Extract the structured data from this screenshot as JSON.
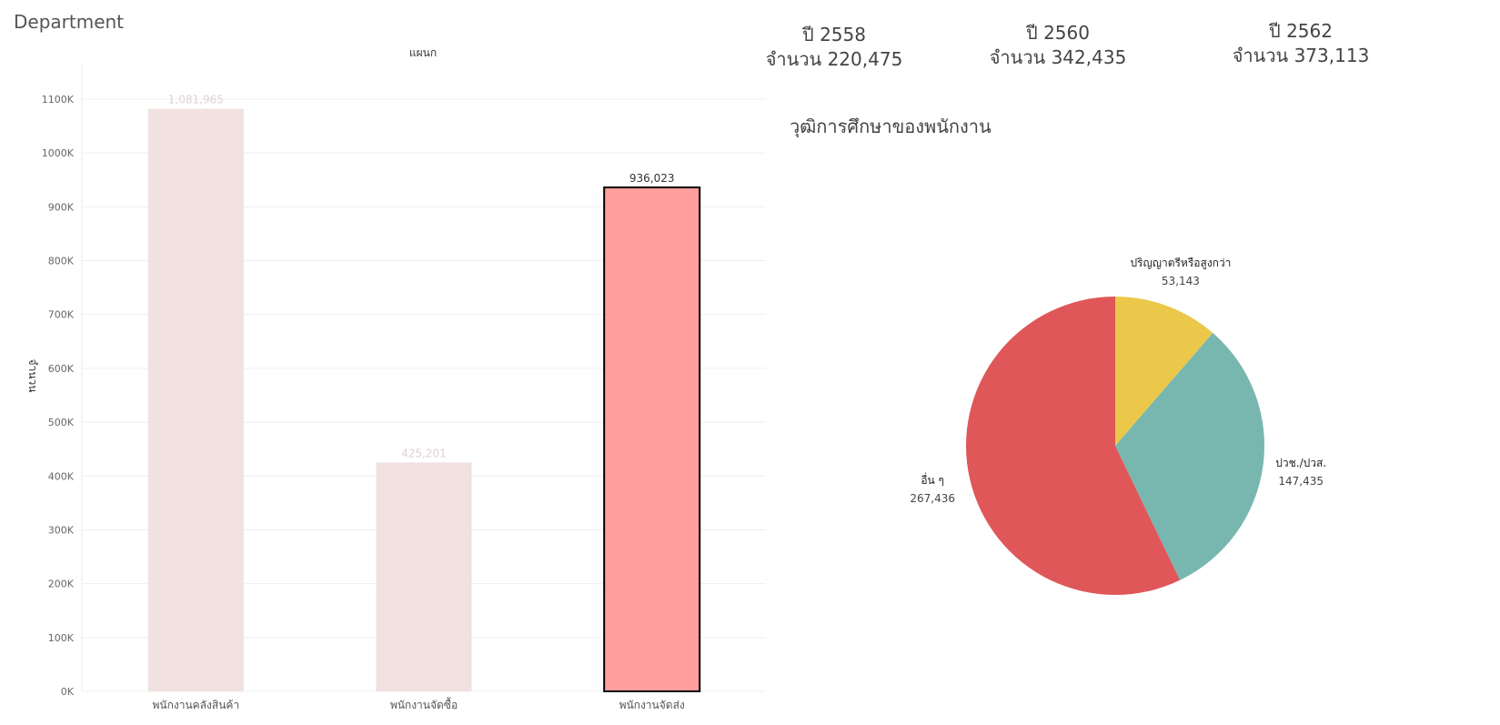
{
  "page": {
    "title": "Department"
  },
  "kpis": [
    {
      "year_label": "ปี 2558",
      "count_label": "จำนวน 220,475"
    },
    {
      "year_label": "ปี 2560",
      "count_label": "จำนวน 342,435"
    },
    {
      "year_label": "ปี 2562",
      "count_label": "จำนวน 373,113"
    }
  ],
  "chart_data": [
    {
      "type": "bar",
      "title": "แผนก",
      "xlabel": "",
      "ylabel": "จำนวน",
      "ylim": [
        0,
        1100000
      ],
      "y_ticks": [
        0,
        100000,
        200000,
        300000,
        400000,
        500000,
        600000,
        700000,
        800000,
        900000,
        1000000,
        1100000
      ],
      "y_tick_labels": [
        "0K",
        "100K",
        "200K",
        "300K",
        "400K",
        "500K",
        "600K",
        "700K",
        "800K",
        "900K",
        "1000K",
        "1100K"
      ],
      "categories": [
        "พนักงานคลังสินค้า",
        "พนักงานจัดซื้อ",
        "พนักงานจัดส่ง"
      ],
      "values": [
        1081965,
        425201,
        936023
      ],
      "value_labels": [
        "1,081,965",
        "425,201",
        "936,023"
      ],
      "selected_index": 2,
      "grid": true,
      "colors": {
        "muted": "#f1e1e1",
        "selected": "#ff9e9c",
        "selected_border": "#000000"
      }
    },
    {
      "type": "pie",
      "title": "วุฒิการศึกษาของพนักงาน",
      "slices": [
        {
          "label": "ปริญญาตรีหรือสูงกว่า",
          "value": 53143,
          "value_label": "53,143",
          "color": "#ebc84a"
        },
        {
          "label": "ปวช./ปวส.",
          "value": 147435,
          "value_label": "147,435",
          "color": "#78b7b0"
        },
        {
          "label": "อื่น ๆ",
          "value": 267436,
          "value_label": "267,436",
          "color": "#e05759"
        }
      ]
    }
  ]
}
